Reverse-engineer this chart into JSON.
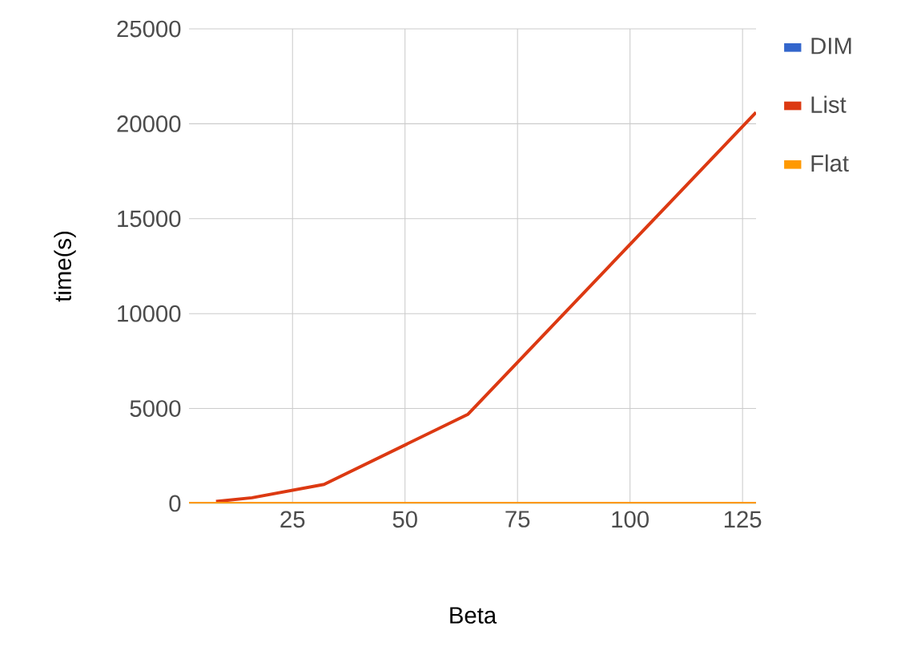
{
  "chart_data": {
    "type": "line",
    "xlabel": "Beta",
    "ylabel": "time(s)",
    "x": [
      2,
      4,
      8,
      16,
      32,
      64,
      128
    ],
    "series": [
      {
        "name": "DIM",
        "color": "#3366cc",
        "values": [
          null,
          null,
          null,
          null,
          null,
          null,
          null
        ]
      },
      {
        "name": "List",
        "color": "#dc3912",
        "values": [
          null,
          null,
          100,
          300,
          1000,
          4700,
          20600
        ]
      },
      {
        "name": "Flat",
        "color": "#ff9900",
        "values": [
          0,
          0,
          0,
          0,
          0,
          0,
          0
        ]
      }
    ],
    "xlim": [
      2,
      128
    ],
    "xticks": [
      25,
      50,
      75,
      100,
      125
    ],
    "ylim": [
      0,
      25000
    ],
    "yticks": [
      0,
      5000,
      10000,
      15000,
      20000,
      25000
    ],
    "grid": true,
    "legend": "top right",
    "marker": "none",
    "line_style": "solid"
  }
}
